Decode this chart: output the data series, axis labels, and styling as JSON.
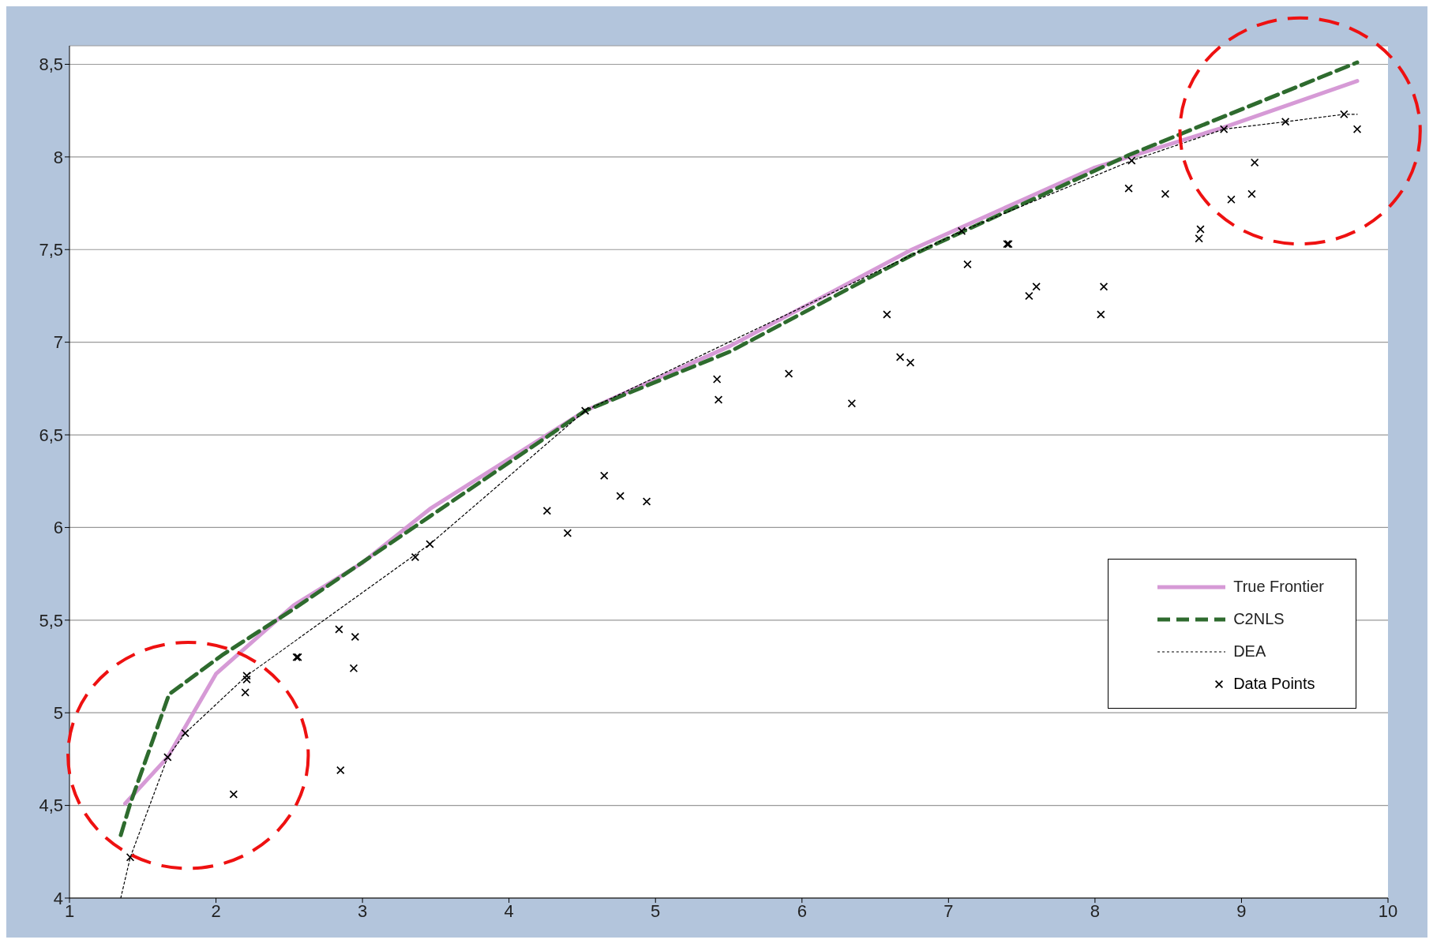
{
  "chart_data": {
    "type": "line",
    "xlim": [
      1,
      10
    ],
    "xticks": [
      1,
      2,
      3,
      4,
      5,
      6,
      7,
      8,
      9,
      10
    ],
    "ylim": [
      4,
      8.6
    ],
    "yticks": [
      4,
      {
        "value": 4.5,
        "label": "4,5"
      },
      5,
      {
        "value": 5.5,
        "label": "5,5"
      },
      6,
      {
        "value": 6.5,
        "label": "6,5"
      },
      7,
      {
        "value": 7.5,
        "label": "7,5"
      },
      8,
      {
        "value": 8.5,
        "label": "8,5"
      }
    ],
    "grid": "y",
    "legend": "bottom right",
    "series": [
      {
        "name": "True Frontier",
        "color": "#d69ad6",
        "line_style": "solid",
        "marker": "none",
        "x": [
          1.38,
          1.67,
          2.0,
          2.53,
          3.0,
          3.46,
          4.52,
          5.51,
          6.75,
          7.99,
          8.88,
          9.79
        ],
        "values": [
          4.51,
          4.76,
          5.21,
          5.58,
          5.81,
          6.1,
          6.63,
          6.98,
          7.5,
          7.94,
          8.16,
          8.41
        ]
      },
      {
        "name": "C2NLS",
        "color": "#2e6b2e",
        "line_style": "dashed",
        "marker": "none",
        "x": [
          1.35,
          1.415,
          1.68,
          2.04,
          2.53,
          3.46,
          4.52,
          5.51,
          6.75,
          8.23,
          9.79
        ],
        "values": [
          4.34,
          4.51,
          5.1,
          5.31,
          5.56,
          6.06,
          6.63,
          6.95,
          7.47,
          8.01,
          8.51
        ]
      },
      {
        "name": "DEA",
        "color": "#000000",
        "line_style": "dotted",
        "marker": "none",
        "x": [
          1.35,
          1.415,
          1.67,
          1.79,
          2.21,
          3.46,
          4.52,
          7.09,
          8.25,
          8.88,
          9.3,
          9.7,
          9.79
        ],
        "values": [
          4.0,
          4.22,
          4.76,
          4.89,
          5.2,
          5.91,
          6.63,
          7.6,
          7.98,
          8.15,
          8.19,
          8.23,
          8.23
        ]
      },
      {
        "name": "Data Points",
        "type": "scatter",
        "color": "#000000",
        "marker": "cross",
        "x": [
          1.415,
          1.67,
          1.79,
          2.12,
          2.2,
          2.21,
          2.21,
          2.55,
          2.56,
          2.84,
          2.95,
          2.94,
          2.85,
          3.36,
          3.46,
          4.26,
          4.4,
          4.52,
          4.65,
          4.76,
          4.94,
          5.42,
          5.43,
          5.91,
          6.34,
          6.58,
          6.67,
          6.74,
          7.09,
          7.13,
          7.4,
          7.41,
          7.55,
          7.6,
          8.04,
          8.06,
          8.23,
          8.25,
          8.48,
          8.71,
          8.72,
          8.88,
          8.93,
          9.07,
          9.09,
          9.3,
          9.7,
          9.79
        ],
        "values": [
          4.22,
          4.76,
          4.89,
          4.56,
          5.11,
          5.2,
          5.18,
          5.3,
          5.3,
          5.45,
          5.41,
          5.24,
          4.69,
          5.84,
          5.91,
          6.09,
          5.97,
          6.63,
          6.28,
          6.17,
          6.14,
          6.8,
          6.69,
          6.83,
          6.67,
          7.15,
          6.92,
          6.89,
          7.6,
          7.42,
          7.53,
          7.53,
          7.25,
          7.3,
          7.15,
          7.3,
          7.83,
          7.98,
          7.8,
          7.56,
          7.61,
          8.15,
          7.77,
          7.8,
          7.97,
          8.19,
          8.23,
          8.15
        ]
      }
    ]
  }
}
